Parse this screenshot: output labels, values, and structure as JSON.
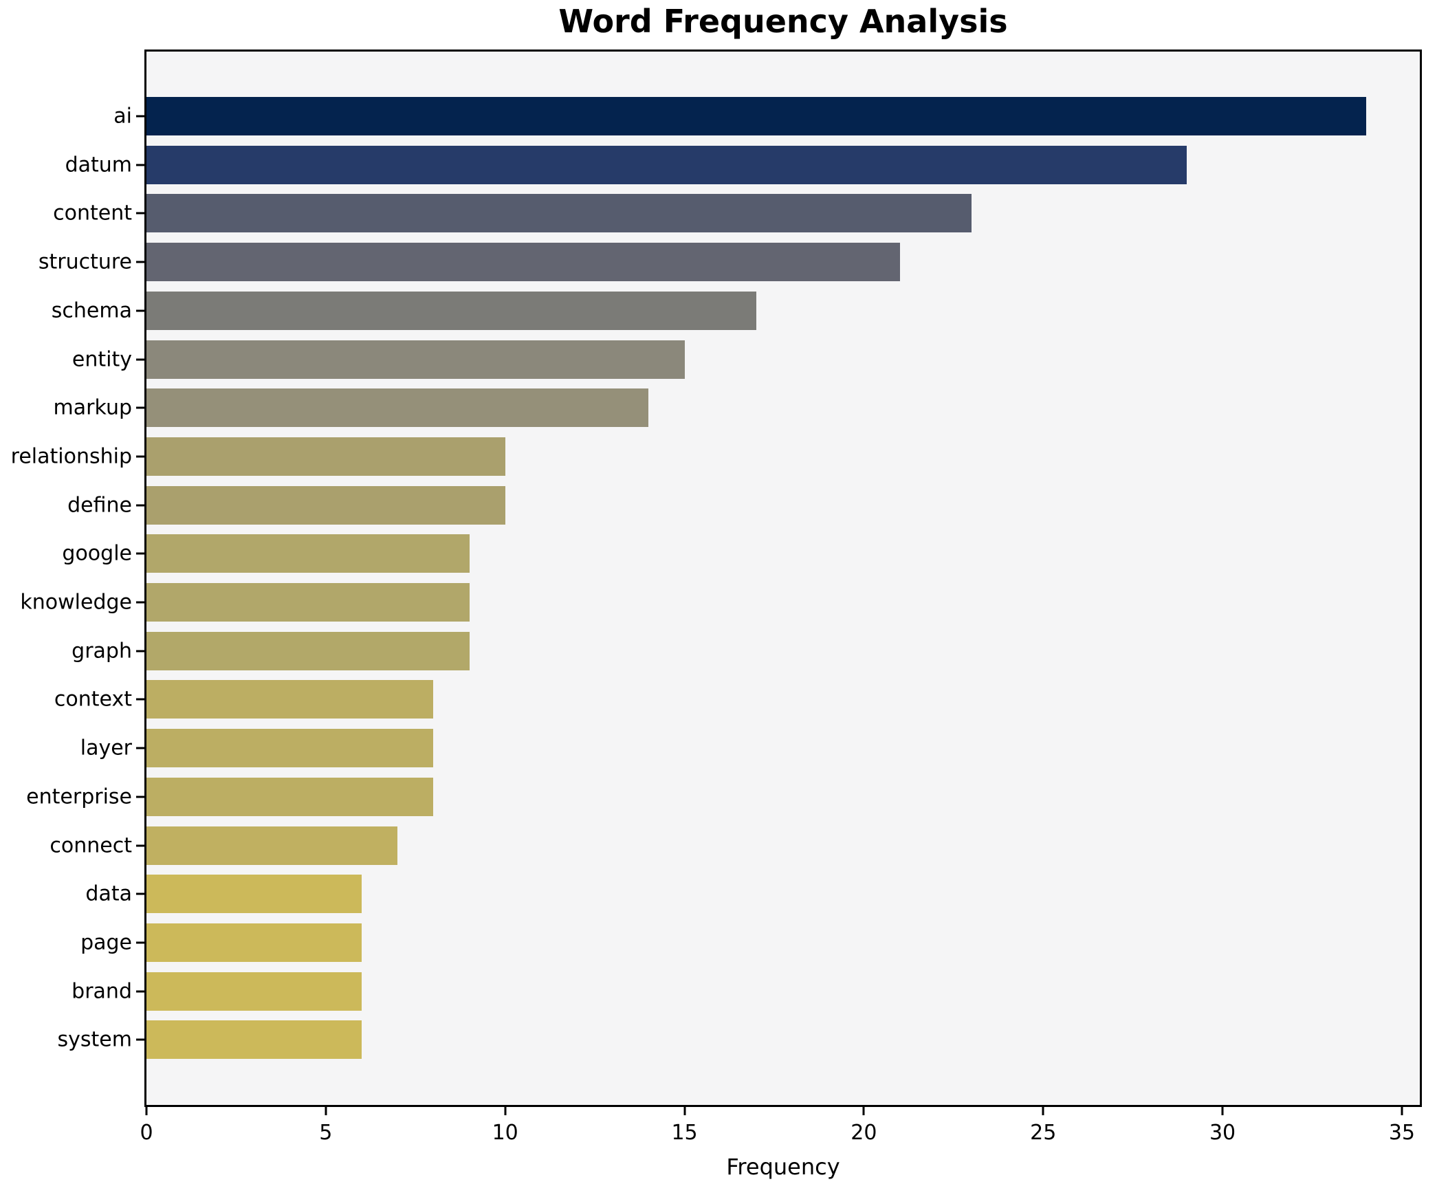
{
  "title": "Word Frequency Analysis",
  "chart_data": {
    "type": "bar",
    "orientation": "horizontal",
    "title": "Word Frequency Analysis",
    "xlabel": "Frequency",
    "ylabel": "",
    "categories": [
      "ai",
      "datum",
      "content",
      "structure",
      "schema",
      "entity",
      "markup",
      "relationship",
      "define",
      "google",
      "knowledge",
      "graph",
      "context",
      "layer",
      "enterprise",
      "connect",
      "data",
      "page",
      "brand",
      "system"
    ],
    "values": [
      34,
      29,
      23,
      21,
      17,
      15,
      14,
      10,
      10,
      9,
      9,
      9,
      8,
      8,
      8,
      7,
      6,
      6,
      6,
      6
    ],
    "bar_colors": [
      "#04234e",
      "#263b69",
      "#565c6e",
      "#636571",
      "#7b7b77",
      "#8b887b",
      "#959079",
      "#aaa06d",
      "#aaa06d",
      "#b1a76a",
      "#b1a76a",
      "#b2a869",
      "#bcae63",
      "#bcae63",
      "#bcae63",
      "#c0b061",
      "#ccb95a",
      "#ccb95a",
      "#ccb95a",
      "#ccb95a"
    ],
    "xlim": [
      0,
      35.5
    ],
    "x_ticks": [
      "0",
      "5",
      "10",
      "15",
      "20",
      "25",
      "30",
      "35"
    ],
    "grid": false,
    "legend": "none",
    "plot_background": "#f5f5f6",
    "figure_background": "#ffffff",
    "spine_color": "#000000",
    "text_color": "#000000"
  }
}
